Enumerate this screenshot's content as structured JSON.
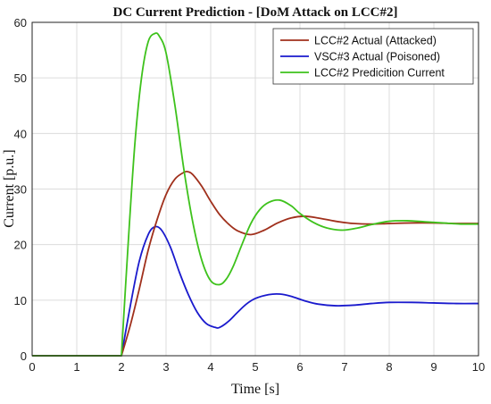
{
  "chart_data": {
    "type": "line",
    "title": "DC Current Prediction - [DoM Attack on LCC#2]",
    "xlabel": "Time [s]",
    "ylabel": "Current [p.u.]",
    "xlim": [
      0,
      10
    ],
    "ylim": [
      0,
      60
    ],
    "xticks": [
      0,
      1,
      2,
      3,
      4,
      5,
      6,
      7,
      8,
      9,
      10
    ],
    "yticks": [
      0,
      10,
      20,
      30,
      40,
      50,
      60
    ],
    "grid": true,
    "legend_position": "top-right",
    "series": [
      {
        "name": "LCC#2 Actual (Attacked)",
        "color": "#a0301c",
        "x": [
          0,
          2.0,
          2.2,
          2.4,
          2.6,
          2.8,
          3.0,
          3.2,
          3.4,
          3.5,
          3.6,
          3.8,
          4.0,
          4.2,
          4.4,
          4.6,
          4.9,
          5.2,
          5.5,
          5.8,
          6.1,
          6.4,
          6.8,
          7.2,
          7.6,
          8.0,
          8.5,
          9.0,
          9.5,
          10.0
        ],
        "y": [
          0,
          0,
          5.5,
          12,
          19,
          24.5,
          29,
          31.8,
          33.0,
          33.1,
          32.6,
          30.5,
          27.8,
          25.4,
          23.7,
          22.5,
          21.8,
          22.6,
          23.9,
          24.8,
          25.1,
          24.8,
          24.2,
          23.8,
          23.7,
          23.8,
          23.9,
          23.9,
          23.8,
          23.8
        ]
      },
      {
        "name": "VSC#3 Actual (Poisoned)",
        "color": "#1a1acd",
        "x": [
          0,
          2.0,
          2.2,
          2.4,
          2.6,
          2.75,
          2.9,
          3.1,
          3.3,
          3.5,
          3.7,
          3.9,
          4.1,
          4.2,
          4.4,
          4.6,
          4.8,
          5.0,
          5.3,
          5.55,
          5.8,
          6.1,
          6.4,
          6.8,
          7.2,
          7.6,
          8.0,
          8.5,
          9.0,
          9.5,
          10.0
        ],
        "y": [
          0,
          0,
          9,
          17,
          21.8,
          23.2,
          22.6,
          19.5,
          15,
          11,
          7.8,
          5.8,
          5.1,
          5.1,
          6.2,
          7.8,
          9.3,
          10.3,
          11.0,
          11.1,
          10.7,
          9.9,
          9.3,
          9.0,
          9.1,
          9.4,
          9.6,
          9.6,
          9.5,
          9.4,
          9.4
        ]
      },
      {
        "name": "LCC#2 Predicition Current",
        "color": "#3ec21c",
        "x": [
          0,
          2.0,
          2.15,
          2.3,
          2.45,
          2.6,
          2.75,
          2.85,
          3.0,
          3.2,
          3.4,
          3.6,
          3.8,
          4.0,
          4.2,
          4.35,
          4.5,
          4.7,
          4.9,
          5.1,
          5.3,
          5.55,
          5.8,
          6.0,
          6.3,
          6.6,
          6.95,
          7.3,
          7.6,
          8.0,
          8.4,
          8.8,
          9.2,
          9.6,
          10.0
        ],
        "y": [
          0,
          0,
          20,
          38,
          50,
          56.5,
          58,
          57.5,
          54.5,
          45,
          33.5,
          24,
          17.2,
          13.5,
          12.8,
          13.8,
          16,
          20,
          23.8,
          26.3,
          27.6,
          28.0,
          27.0,
          25.6,
          24.0,
          23.0,
          22.6,
          23.0,
          23.6,
          24.2,
          24.3,
          24.1,
          23.9,
          23.7,
          23.7
        ]
      }
    ]
  }
}
